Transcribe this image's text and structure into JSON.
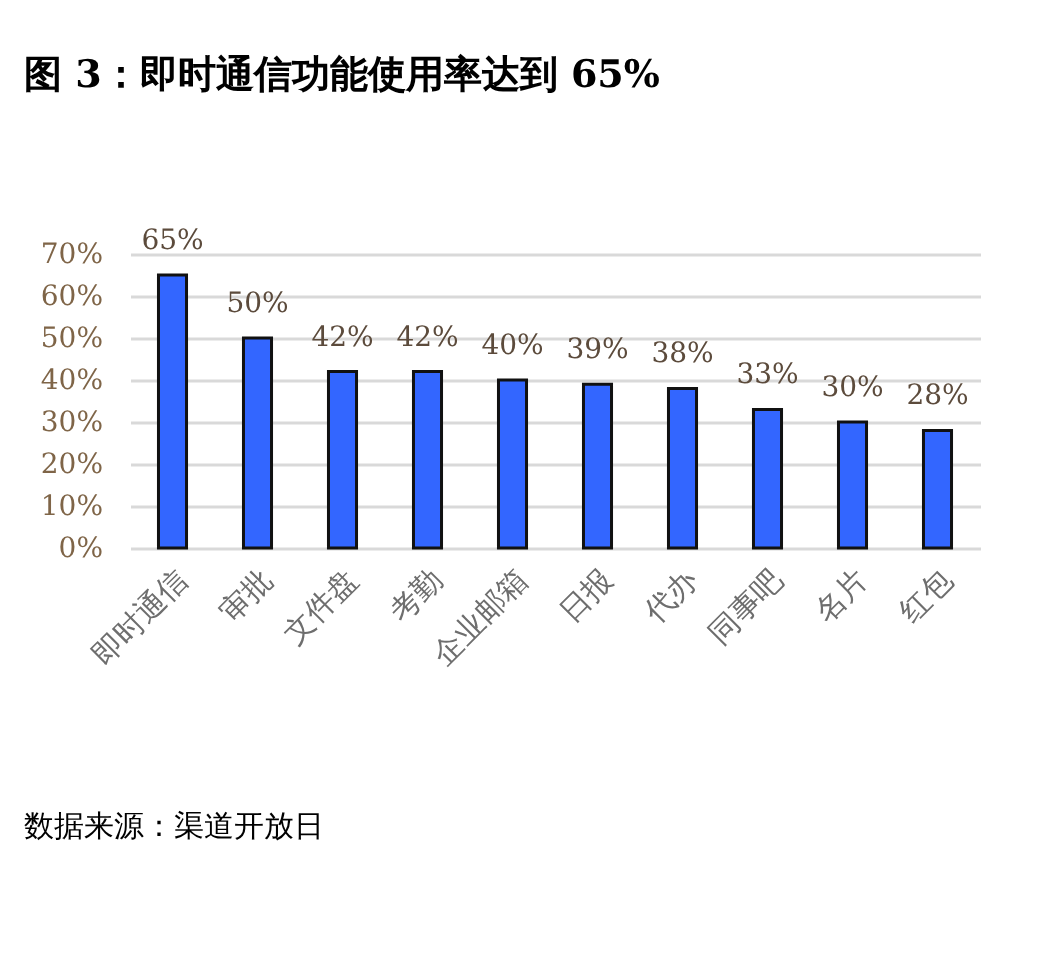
{
  "chart_data": {
    "type": "bar",
    "title": "图 3：即时通信功能使用率达到 65%",
    "categories": [
      "即时通信",
      "审批",
      "文件盘",
      "考勤",
      "企业邮箱",
      "日报",
      "代办",
      "同事吧",
      "名片",
      "红包"
    ],
    "values": [
      65,
      50,
      42,
      42,
      40,
      39,
      38,
      33,
      30,
      28
    ],
    "value_labels": [
      "65%",
      "50%",
      "42%",
      "42%",
      "40%",
      "39%",
      "38%",
      "33%",
      "30%",
      "28%"
    ],
    "color": "#3366ff",
    "ylim": [
      0,
      70
    ],
    "yticks": [
      {
        "value": 0,
        "label": "0%"
      },
      {
        "value": 10,
        "label": "10%"
      },
      {
        "value": 20,
        "label": "20%"
      },
      {
        "value": 30,
        "label": "30%"
      },
      {
        "value": 40,
        "label": "40%"
      },
      {
        "value": 50,
        "label": "50%"
      },
      {
        "value": 60,
        "label": "60%"
      },
      {
        "value": 70,
        "label": "70%"
      }
    ],
    "grid": "y",
    "annotations": [
      "数据来源：渠道开放日"
    ]
  }
}
